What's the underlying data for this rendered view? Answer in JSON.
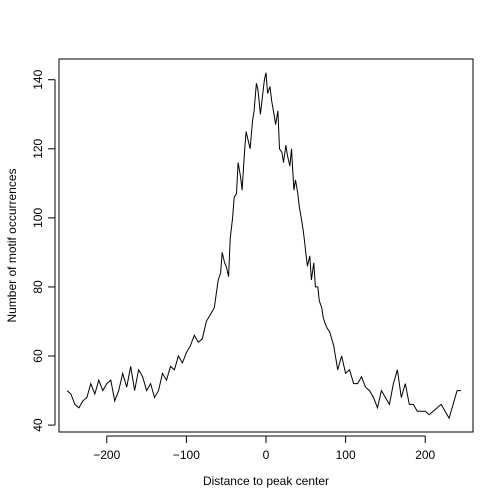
{
  "chart_data": {
    "type": "line",
    "title": "",
    "xlabel": "Distance to peak center",
    "ylabel": "Number of motif occurrences",
    "xlim": [
      -260,
      260
    ],
    "ylim": [
      38,
      146
    ],
    "xticks": [
      -200,
      -100,
      0,
      100,
      200
    ],
    "yticks": [
      40,
      60,
      80,
      100,
      120,
      140
    ],
    "xtick_labels": [
      "−200",
      "−100",
      "0",
      "100",
      "200"
    ],
    "ytick_labels": [
      "40",
      "60",
      "80",
      "100",
      "120",
      "140"
    ],
    "grid": false,
    "legend": "none",
    "line_color": "#000000",
    "series": [
      {
        "x": [
          -250,
          -245,
          -240,
          -235,
          -230,
          -225,
          -220,
          -215,
          -210,
          -205,
          -200,
          -195,
          -190,
          -185,
          -180,
          -175,
          -170,
          -165,
          -160,
          -155,
          -150,
          -145,
          -140,
          -135,
          -130,
          -125,
          -120,
          -115,
          -110,
          -105,
          -100,
          -95,
          -90,
          -85,
          -80,
          -75,
          -70,
          -65,
          -60,
          -57,
          -55,
          -52,
          -50,
          -47,
          -45,
          -42,
          -40,
          -37,
          -35,
          -32,
          -30,
          -27,
          -25,
          -22,
          -20,
          -17,
          -15,
          -12,
          -10,
          -7,
          -5,
          -2,
          0,
          2,
          5,
          7,
          10,
          12,
          15,
          17,
          20,
          22,
          25,
          27,
          30,
          32,
          35,
          37,
          40,
          42,
          45,
          47,
          50,
          52,
          55,
          57,
          60,
          62,
          65,
          67,
          70,
          72,
          75,
          77,
          80,
          85,
          90,
          95,
          100,
          105,
          110,
          115,
          120,
          125,
          130,
          135,
          140,
          145,
          150,
          155,
          160,
          165,
          170,
          175,
          180,
          185,
          190,
          195,
          200,
          205,
          210,
          215,
          220,
          225,
          230,
          235,
          240,
          245
        ],
        "y": [
          50,
          49,
          46,
          45,
          47,
          48,
          52,
          49,
          53,
          50,
          52,
          53,
          47,
          50,
          55,
          51,
          57,
          50,
          56,
          54,
          50,
          52,
          48,
          50,
          55,
          53,
          57,
          56,
          60,
          58,
          61,
          63,
          66,
          64,
          65,
          70,
          72,
          74,
          82,
          84,
          90,
          87,
          86,
          83,
          94,
          100,
          106,
          107,
          116,
          112,
          108,
          119,
          125,
          122,
          120,
          128,
          131,
          139,
          137,
          130,
          134,
          140,
          142,
          136,
          138,
          134,
          130,
          127,
          131,
          120,
          119,
          116,
          121,
          118,
          115,
          120,
          108,
          111,
          107,
          103,
          99,
          96,
          90,
          86,
          89,
          82,
          87,
          80,
          80,
          76,
          74,
          71,
          69,
          68,
          67,
          63,
          56,
          60,
          55,
          56,
          52,
          52,
          54,
          51,
          50,
          48,
          45,
          50,
          48,
          46,
          52,
          56,
          48,
          52,
          46,
          46,
          44,
          44,
          44,
          43,
          44,
          45,
          46,
          44,
          42,
          46,
          50,
          50
        ]
      }
    ]
  }
}
